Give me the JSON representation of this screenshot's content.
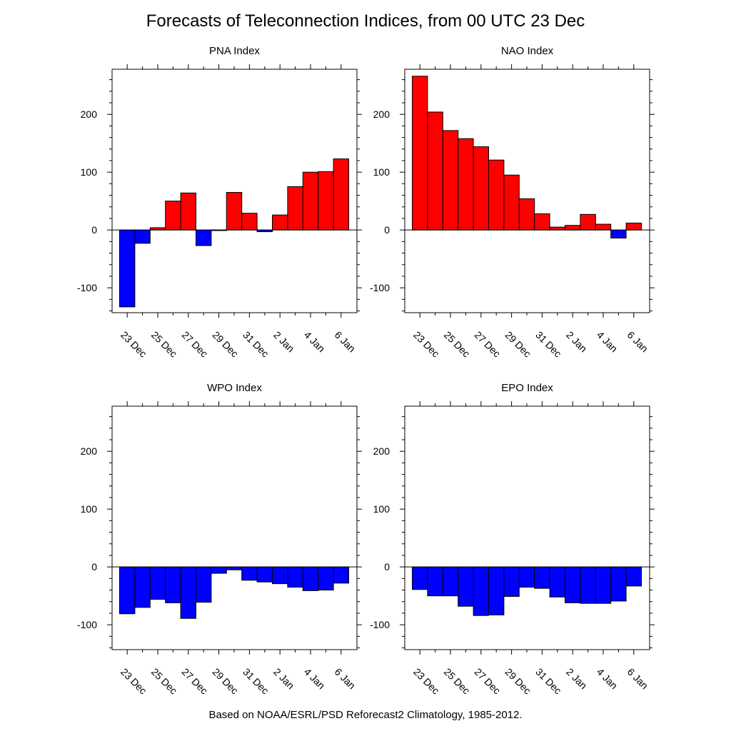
{
  "title": "Forecasts of Teleconnection Indices, from 00 UTC 23 Dec",
  "footer": "Based on NOAA/ESRL/PSD Reforecast2 Climatology, 1985-2012.",
  "colors": {
    "positive": "#ff0000",
    "negative": "#0000ff",
    "axis": "#000000"
  },
  "chart_data": [
    {
      "type": "bar",
      "title": "PNA Index",
      "x_tick_labels": [
        "23 Dec",
        "25 Dec",
        "27 Dec",
        "29 Dec",
        "31 Dec",
        "2 Jan",
        "4 Jan",
        "6 Jan"
      ],
      "ylim": [
        -143,
        278
      ],
      "y_ticks": [
        -100,
        0,
        100,
        200
      ],
      "values": [
        -133,
        -23,
        4,
        50,
        64,
        -27,
        -1,
        65,
        29,
        -3,
        26,
        75,
        100,
        101,
        123
      ]
    },
    {
      "type": "bar",
      "title": "NAO Index",
      "x_tick_labels": [
        "23 Dec",
        "25 Dec",
        "27 Dec",
        "29 Dec",
        "31 Dec",
        "2 Jan",
        "4 Jan",
        "6 Jan"
      ],
      "ylim": [
        -143,
        278
      ],
      "y_ticks": [
        -100,
        0,
        100,
        200
      ],
      "values": [
        266,
        204,
        172,
        158,
        144,
        121,
        95,
        54,
        28,
        5,
        8,
        27,
        10,
        -14,
        12
      ]
    },
    {
      "type": "bar",
      "title": "WPO Index",
      "x_tick_labels": [
        "23 Dec",
        "25 Dec",
        "27 Dec",
        "29 Dec",
        "31 Dec",
        "2 Jan",
        "4 Jan",
        "6 Jan"
      ],
      "ylim": [
        -143,
        278
      ],
      "y_ticks": [
        -100,
        0,
        100,
        200
      ],
      "values": [
        -81,
        -70,
        -56,
        -62,
        -89,
        -61,
        -11,
        -5,
        -23,
        -26,
        -29,
        -35,
        -41,
        -40,
        -28
      ]
    },
    {
      "type": "bar",
      "title": "EPO Index",
      "x_tick_labels": [
        "23 Dec",
        "25 Dec",
        "27 Dec",
        "29 Dec",
        "31 Dec",
        "2 Jan",
        "4 Jan",
        "6 Jan"
      ],
      "ylim": [
        -143,
        278
      ],
      "y_ticks": [
        -100,
        0,
        100,
        200
      ],
      "values": [
        -39,
        -50,
        -50,
        -68,
        -84,
        -83,
        -51,
        -35,
        -37,
        -52,
        -62,
        -63,
        -63,
        -59,
        -33
      ]
    }
  ]
}
